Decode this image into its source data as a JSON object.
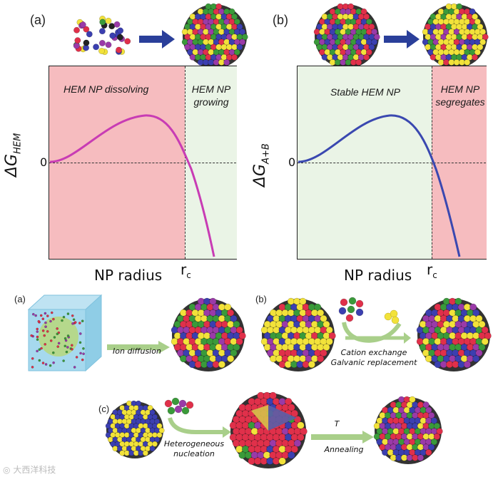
{
  "top": {
    "panel_a": {
      "label": "(a)",
      "region_left": "HEM NP dissolving",
      "region_right_line1": "HEM NP",
      "region_right_line2": "growing",
      "y_label_main": "ΔG",
      "y_label_sub": "HEM",
      "zero_label": "0",
      "x_label": "NP radius",
      "rc_label": "r",
      "rc_sub": "c",
      "curve_color": "#c83cb4",
      "left_fill": "#f6bcbf",
      "right_fill": "#eaf4e6"
    },
    "panel_b": {
      "label": "(b)",
      "region_left": "Stable HEM NP",
      "region_right_line1": "HEM NP",
      "region_right_line2": "segregates",
      "y_label_main": "ΔG",
      "y_label_sub": "A+B",
      "zero_label": "0",
      "x_label": "NP radius",
      "rc_label": "r",
      "rc_sub": "c",
      "curve_color": "#3a48b0",
      "left_fill": "#eaf4e6",
      "right_fill": "#f6bcbf"
    }
  },
  "bottom": {
    "a": {
      "label": "(a)",
      "step": "Ion diffusion"
    },
    "b": {
      "label": "(b)",
      "step_line1": "Cation exchange",
      "step_line2": "Galvanic replacement"
    },
    "c": {
      "label": "(c)",
      "step1_line1": "Heterogeneous",
      "step1_line2": "nucleation",
      "step2_top": "T",
      "step2": "Annealing"
    }
  },
  "watermark": "大西洋科技",
  "colors": {
    "arrow_blue": "#2a3f9a",
    "arrow_green": "#a9cf8a",
    "sphere_colors": [
      "#e0304a",
      "#f2e23a",
      "#3a9a3a",
      "#3b3fb0",
      "#9a3aa8",
      "#e8a020"
    ]
  }
}
